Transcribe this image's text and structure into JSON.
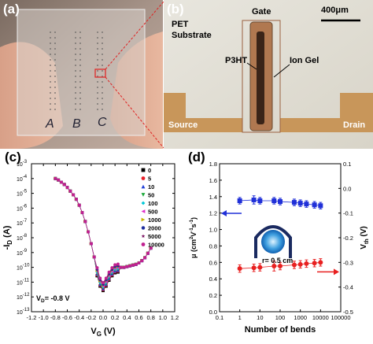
{
  "panels": {
    "a": {
      "label": "(a)",
      "strip_letters": [
        "A",
        "B",
        "C"
      ]
    },
    "b": {
      "label": "(b)",
      "substrate_label": "PET\nSubstrate",
      "gate_label": "Gate",
      "scale_label": "400μm",
      "p3ht_label": "P3HT",
      "iongel_label": "Ion Gel",
      "source_label": "Source",
      "drain_label": "Drain"
    },
    "c": {
      "label": "(c)",
      "vd_label": "V = -0.8 V",
      "vd_main": "V",
      "vd_sub": "D",
      "vd_rest": "= -0.8 V"
    },
    "d": {
      "label": "(d)",
      "inset_label": "r= 0.5 cm"
    }
  },
  "chart_data": [
    {
      "type": "scatter",
      "panel": "c",
      "xlabel_main": "V",
      "xlabel_sub": "G",
      "xlabel_unit": " (V)",
      "ylabel_main": "-I",
      "ylabel_sub": "D",
      "ylabel_unit": " (A)",
      "xlim": [
        -1.2,
        1.2
      ],
      "ylim_exp": [
        -13,
        -3
      ],
      "y_log": true,
      "x_ticks": [
        "-1.2",
        "-1.0",
        "-0.8",
        "-0.6",
        "-0.4",
        "-0.2",
        "0.0",
        "0.2",
        "0.4",
        "0.6",
        "0.8",
        "1.0",
        "1.2"
      ],
      "y_ticks": [
        "10-13",
        "10-12",
        "10-11",
        "10-10",
        "10-9",
        "10-8",
        "10-7",
        "10-6",
        "10-5",
        "10-4",
        "10-3"
      ],
      "legend_position": "top-right",
      "series": [
        {
          "name": "0",
          "color": "#000000",
          "marker": "square"
        },
        {
          "name": "5",
          "color": "#e8202a",
          "marker": "circle"
        },
        {
          "name": "10",
          "color": "#1f3fd8",
          "marker": "triangle-up"
        },
        {
          "name": "50",
          "color": "#1aa838",
          "marker": "triangle-down"
        },
        {
          "name": "100",
          "color": "#00c8d8",
          "marker": "diamond"
        },
        {
          "name": "500",
          "color": "#e030c8",
          "marker": "triangle-left"
        },
        {
          "name": "1000",
          "color": "#c8b400",
          "marker": "triangle-right"
        },
        {
          "name": "2000",
          "color": "#1a2a9c",
          "marker": "hexagon"
        },
        {
          "name": "5000",
          "color": "#7a1060",
          "marker": "star"
        },
        {
          "name": "10000",
          "color": "#c02090",
          "marker": "circle"
        }
      ],
      "curve_vg": [
        -0.8,
        -0.75,
        -0.7,
        -0.65,
        -0.6,
        -0.55,
        -0.5,
        -0.45,
        -0.4,
        -0.35,
        -0.3,
        -0.25,
        -0.2,
        -0.15,
        -0.1,
        -0.05,
        0.0,
        0.05,
        0.1,
        0.15,
        0.2,
        0.25,
        0.3,
        0.35,
        0.4,
        0.45,
        0.5,
        0.55,
        0.6,
        0.65,
        0.7,
        0.75,
        0.8
      ],
      "curve_log_id": [
        -4.0,
        -4.1,
        -4.25,
        -4.4,
        -4.6,
        -4.85,
        -5.1,
        -5.4,
        -5.8,
        -6.3,
        -6.9,
        -7.6,
        -8.4,
        -9.3,
        -10.3,
        -11.0,
        -11.3,
        -11.0,
        -10.6,
        -10.3,
        -10.1,
        -10.05,
        -10.0,
        -10.0,
        -9.95,
        -9.9,
        -9.85,
        -9.8,
        -9.7,
        -9.55,
        -9.35,
        -9.05,
        -8.7
      ]
    },
    {
      "type": "scatter",
      "panel": "d",
      "xlabel": "Number of bends",
      "ylabel_left_main": "μ (cm",
      "ylabel_left_sup1": "2",
      "ylabel_left_mid": "V",
      "ylabel_left_sup2": "-1",
      "ylabel_left_end": "s",
      "ylabel_left_sup3": "-1",
      "ylabel_left_close": ")",
      "ylabel_right_main": "V",
      "ylabel_right_sub": "th",
      "ylabel_right_unit": " (V)",
      "x_log": true,
      "xlim": [
        0.1,
        100000
      ],
      "x_ticks": [
        "0.1",
        "1",
        "10",
        "100",
        "1000",
        "10000",
        "100000"
      ],
      "ylim_left": [
        0.0,
        1.8
      ],
      "y_ticks_left": [
        "0.0",
        "0.2",
        "0.4",
        "0.6",
        "0.8",
        "1.0",
        "1.2",
        "1.4",
        "1.6",
        "1.8"
      ],
      "ylim_right": [
        -0.5,
        0.1
      ],
      "y_ticks_right": [
        "-0.5",
        "-0.4",
        "-0.3",
        "-0.2",
        "-0.1",
        "0.0",
        "0.1"
      ],
      "series": [
        {
          "axis": "left",
          "color": "#2030d8",
          "marker": "square",
          "x": [
            1,
            5,
            10,
            50,
            100,
            500,
            1000,
            2000,
            5000,
            10000
          ],
          "y": [
            1.35,
            1.36,
            1.35,
            1.35,
            1.34,
            1.33,
            1.32,
            1.31,
            1.3,
            1.29
          ],
          "err": [
            0.04,
            0.05,
            0.04,
            0.04,
            0.04,
            0.04,
            0.04,
            0.04,
            0.04,
            0.04
          ]
        },
        {
          "axis": "right",
          "color": "#e82020",
          "marker": "circle",
          "x": [
            1,
            5,
            10,
            50,
            100,
            500,
            1000,
            2000,
            5000,
            10000
          ],
          "y": [
            -0.325,
            -0.322,
            -0.32,
            -0.315,
            -0.315,
            -0.31,
            -0.308,
            -0.305,
            -0.303,
            -0.3
          ],
          "err": [
            0.015,
            0.015,
            0.015,
            0.02,
            0.015,
            0.015,
            0.015,
            0.015,
            0.015,
            0.015
          ]
        }
      ]
    }
  ]
}
